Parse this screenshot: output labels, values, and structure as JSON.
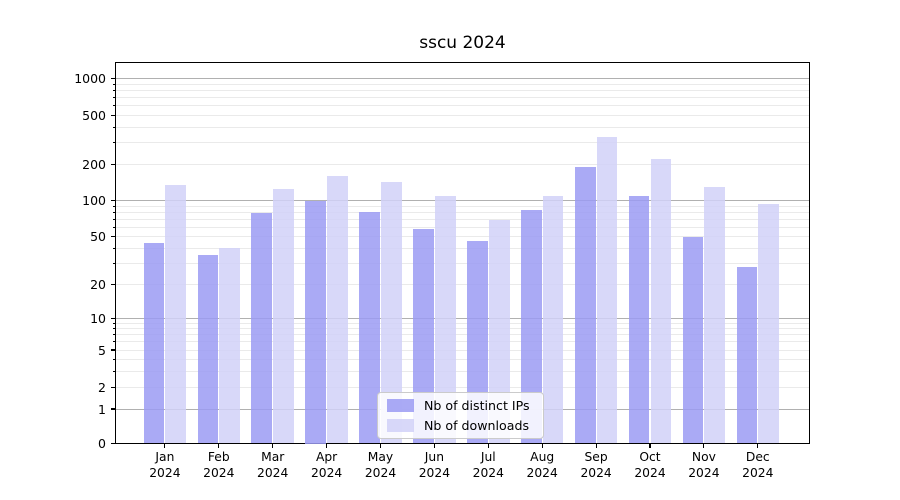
{
  "chart_data": {
    "type": "bar",
    "title": "sscu 2024",
    "categories": [
      "Jan",
      "Feb",
      "Mar",
      "Apr",
      "May",
      "Jun",
      "Jul",
      "Aug",
      "Sep",
      "Oct",
      "Nov",
      "Dec"
    ],
    "year_label": "2024",
    "series": [
      {
        "name": "Nb of distinct IPs",
        "color": "#9b9bf3",
        "values": [
          44,
          35,
          78,
          100,
          80,
          58,
          46,
          84,
          190,
          109,
          50,
          28
        ]
      },
      {
        "name": "Nb of downloads",
        "color": "#d1d1f8",
        "values": [
          135,
          40,
          125,
          160,
          142,
          110,
          69,
          110,
          335,
          220,
          130,
          94
        ]
      }
    ],
    "yscale": "symlog",
    "y_ticks": [
      0,
      1,
      2,
      5,
      10,
      20,
      50,
      100,
      200,
      500,
      1000
    ],
    "y_minor_gridlines": [
      2,
      3,
      4,
      5,
      6,
      7,
      8,
      9,
      20,
      30,
      40,
      50,
      60,
      70,
      80,
      90,
      200,
      300,
      400,
      500,
      600,
      700,
      800,
      900
    ],
    "y_major_gridlines": [
      1,
      10,
      100,
      1000
    ],
    "ylim": [
      0,
      1370
    ],
    "xlabel": "",
    "ylabel": "",
    "grid": "horizontal",
    "legend_position": "lower center",
    "colors": {
      "bar_dark": "#9b9bf3",
      "bar_light": "#d1d1f8",
      "grid_major": "#b0b0b0",
      "grid_minor": "#eaeaea",
      "axis": "#000000"
    }
  }
}
